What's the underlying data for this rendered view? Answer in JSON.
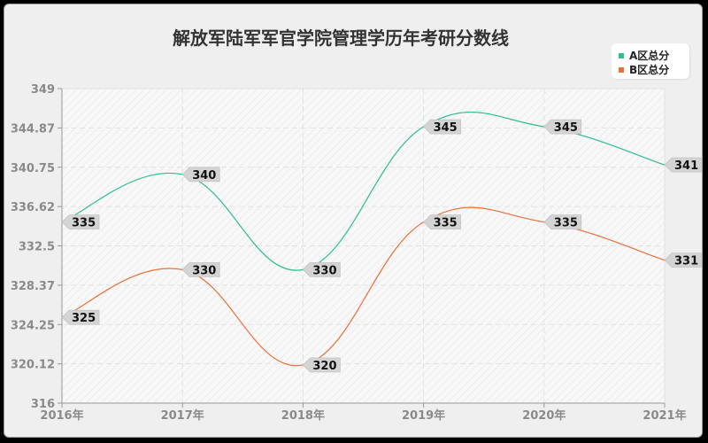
{
  "title": "解放军陆军军官学院管理学历年考研分数线",
  "legend": [
    {
      "label": "A区总分",
      "color": "#2ebd8f"
    },
    {
      "label": "B区总分",
      "color": "#e8703a"
    }
  ],
  "chart_data": {
    "type": "line",
    "title": "解放军陆军军官学院管理学历年考研分数线",
    "xlabel": "",
    "ylabel": "",
    "categories": [
      "2016年",
      "2017年",
      "2018年",
      "2019年",
      "2020年",
      "2021年"
    ],
    "series": [
      {
        "name": "A区总分",
        "color": "#2ebd8f",
        "values": [
          335,
          340,
          330,
          345,
          345,
          341
        ]
      },
      {
        "name": "B区总分",
        "color": "#e8703a",
        "values": [
          325,
          330,
          320,
          335,
          335,
          331
        ]
      }
    ],
    "yticks": [
      "349",
      "344.87",
      "340.75",
      "336.62",
      "332.5",
      "328.37",
      "324.25",
      "320.12",
      "316"
    ],
    "ylim": [
      316,
      349
    ],
    "grid": true,
    "smooth": true,
    "legend_position": "top-right"
  }
}
